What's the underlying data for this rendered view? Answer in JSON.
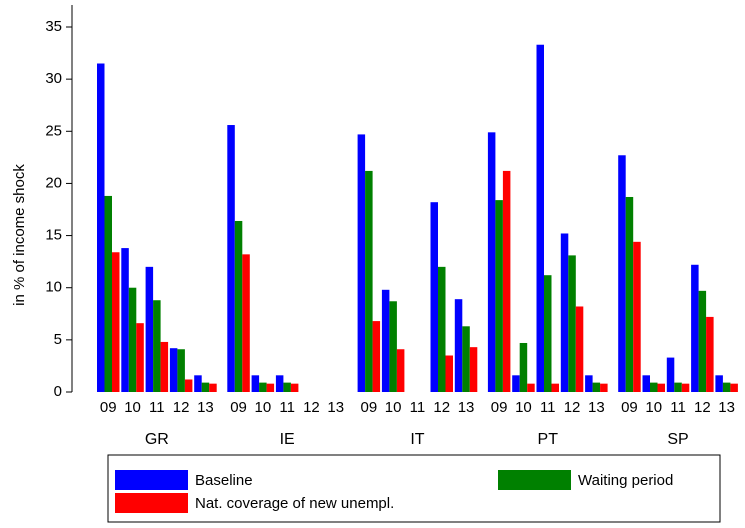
{
  "chart_data": {
    "type": "grouped_bar",
    "y_label": "in % of income shock",
    "groups": [
      "GR",
      "IE",
      "IT",
      "PT",
      "SP"
    ],
    "categories": [
      "09",
      "10",
      "11",
      "12",
      "13",
      "09",
      "10",
      "11",
      "12",
      "13",
      "09",
      "10",
      "11",
      "12",
      "13",
      "09",
      "10",
      "11",
      "12",
      "13",
      "09",
      "10",
      "11",
      "12",
      "13"
    ],
    "series": [
      {
        "name": "Baseline",
        "color": "#0000ff",
        "values": [
          31.5,
          13.8,
          12,
          4.2,
          1.6,
          25.6,
          1.6,
          1.6,
          null,
          null,
          24.7,
          9.8,
          null,
          18.2,
          8.9,
          24.9,
          1.6,
          33.3,
          15.2,
          1.6,
          22.7,
          1.6,
          3.3,
          12.2,
          1.6
        ]
      },
      {
        "name": "Waiting period",
        "color": "#008000",
        "values": [
          18.8,
          10,
          8.8,
          4.1,
          0.9,
          16.4,
          0.9,
          0.9,
          null,
          null,
          21.2,
          8.7,
          null,
          12,
          6.3,
          18.4,
          4.7,
          11.2,
          13.1,
          0.9,
          18.7,
          0.9,
          0.9,
          9.7,
          0.9
        ]
      },
      {
        "name": "Nat. coverage of new unempl.",
        "color": "#ff0000",
        "values": [
          13.4,
          6.6,
          4.8,
          1.2,
          0.8,
          13.2,
          0.8,
          0.8,
          null,
          null,
          6.8,
          4.1,
          null,
          3.5,
          4.3,
          21.2,
          0.8,
          0.8,
          8.2,
          0.8,
          14.4,
          0.8,
          0.8,
          7.2,
          0.8
        ]
      }
    ],
    "ylim": [
      0,
      35
    ],
    "yticks": [
      0,
      5,
      10,
      15,
      20,
      25,
      30,
      35
    ],
    "grid": false,
    "legend": "bottom"
  }
}
